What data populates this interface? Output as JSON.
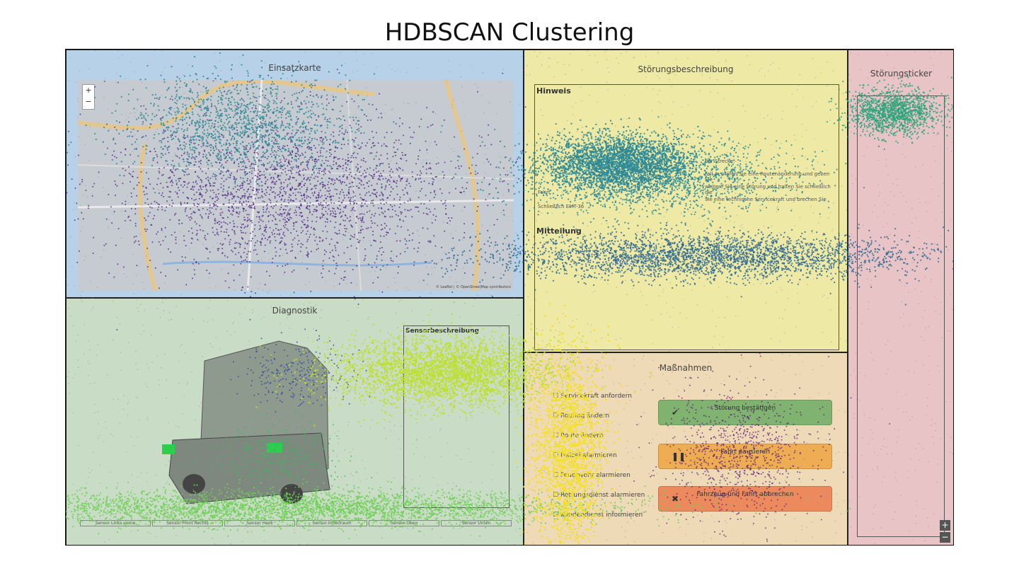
{
  "figure": {
    "title": "HDBSCAN Clustering"
  },
  "map_panel": {
    "title": "Einsatzkarte",
    "zoom_in": "+",
    "zoom_out": "−",
    "attribution": "© Leaflet | © OpenStreetMap contributors"
  },
  "diag_panel": {
    "title": "Diagnostik",
    "sensor_box_title": "Sensorbeschreibung",
    "sensor_tabs": [
      "Sensor Links vorne",
      "Sensor Front Rechts",
      "Sensor Heck",
      "Sensor Innenraum",
      "Sensor Oben",
      "Sensor Unten"
    ]
  },
  "desc_panel": {
    "title": "Störungsbeschreibung",
    "hint_heading": "Hinweis",
    "message_heading": "Mitteilung",
    "text_lines": [
      "der Strecke:",
      "Fall A: prüfen Sie eine Routenänderung und geben Sie",
      "weitere Sie eine Störung und halten Sie schließlich die",
      "Fahrt",
      "Sie eine technische Servicekraft und brechen Sie",
      "Schließlich EMT-36"
    ]
  },
  "actions_panel": {
    "title": "Maßnahmen",
    "items": [
      "Servicekraft anfordern",
      "Routing ändern",
      "Route ändern",
      "Polizei alarmieren",
      "Feuerwehr alarmieren",
      "Rettungsdienst alarmieren",
      "Kundendienst informieren"
    ],
    "buttons": [
      {
        "label": "Störung bestätigen",
        "icon": "check-icon",
        "color": "#7fb36f"
      },
      {
        "label": "Fahrt pausieren",
        "icon": "pause-icon",
        "color": "#efad53"
      },
      {
        "label": "Fahrzeug und Fahrt abbrechen",
        "icon": "cross-icon",
        "color": "#ec8a5e"
      }
    ]
  },
  "ticker_panel": {
    "title": "Störungsticker",
    "controls": [
      "+",
      "−"
    ]
  },
  "clusters": {
    "colors": {
      "noise": "#8a8a8a",
      "purple": "#4a1c82",
      "blue": "#2f4a98",
      "teal": "#2d8a96",
      "tealblue": "#2f6a92",
      "green": "#2aa37a",
      "lime": "#bde02a",
      "lightgreen": "#6fd055",
      "midgreen": "#3fb85e",
      "yellow": "#f3e024",
      "purple2": "#5a1a7a"
    }
  }
}
